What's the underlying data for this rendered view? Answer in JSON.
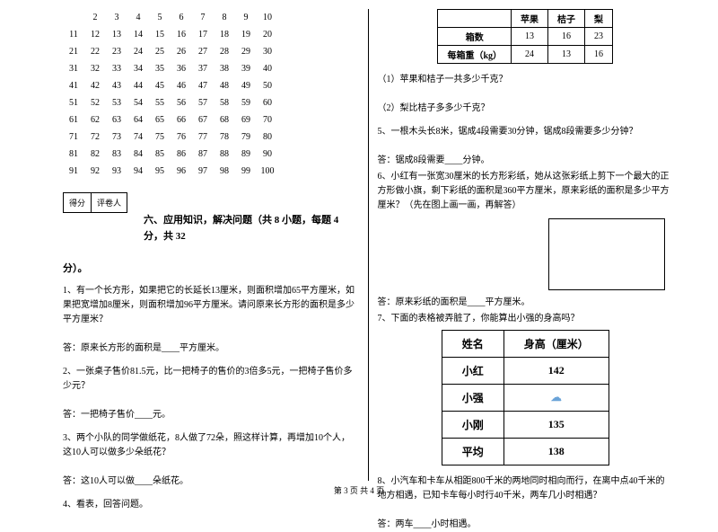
{
  "numbers": [
    [
      "",
      "2",
      "3",
      "4",
      "5",
      "6",
      "7",
      "8",
      "9",
      "10"
    ],
    [
      "11",
      "12",
      "13",
      "14",
      "15",
      "16",
      "17",
      "18",
      "19",
      "20"
    ],
    [
      "21",
      "22",
      "23",
      "24",
      "25",
      "26",
      "27",
      "28",
      "29",
      "30"
    ],
    [
      "31",
      "32",
      "33",
      "34",
      "35",
      "36",
      "37",
      "38",
      "39",
      "40"
    ],
    [
      "41",
      "42",
      "43",
      "44",
      "45",
      "46",
      "47",
      "48",
      "49",
      "50"
    ],
    [
      "51",
      "52",
      "53",
      "54",
      "55",
      "56",
      "57",
      "58",
      "59",
      "60"
    ],
    [
      "61",
      "62",
      "63",
      "64",
      "65",
      "66",
      "67",
      "68",
      "69",
      "70"
    ],
    [
      "71",
      "72",
      "73",
      "74",
      "75",
      "76",
      "77",
      "78",
      "79",
      "80"
    ],
    [
      "81",
      "82",
      "83",
      "84",
      "85",
      "86",
      "87",
      "88",
      "89",
      "90"
    ],
    [
      "91",
      "92",
      "93",
      "94",
      "95",
      "96",
      "97",
      "98",
      "99",
      "100"
    ]
  ],
  "scoreLabels": {
    "score": "得分",
    "grader": "评卷人"
  },
  "sectionSix": "六、应用知识，解决问题（共 8 小题，每题 4 分，共 32",
  "sectionSixCont": "分）。",
  "left": {
    "q1": "1、有一个长方形，如果把它的长延长13厘米，则面积增加65平方厘米，如果把宽增加8厘米，则面积增加96平方厘米。请问原来长方形的面积是多少平方厘米？",
    "a1": "答：原来长方形的面积是____平方厘米。",
    "q2": "2、一张桌子售价81.5元，比一把椅子的售价的3倍多5元，一把椅子售价多少元？",
    "a2": "答：一把椅子售价____元。",
    "q3": "3、两个小队的同学做纸花，8人做了72朵，照这样计算，再增加10个人，这10人可以做多少朵纸花？",
    "a3": "答：这10人可以做____朵纸花。",
    "q4": "4、看表，回答问题。"
  },
  "table1": {
    "headers": [
      "",
      "苹果",
      "桔子",
      "梨"
    ],
    "rows": [
      [
        "箱数",
        "13",
        "16",
        "23"
      ],
      [
        "每箱重（kg）",
        "24",
        "13",
        "16"
      ]
    ]
  },
  "right": {
    "q4a": "（1）苹果和桔子一共多少千克？",
    "q4b": "（2）梨比桔子多多少千克？",
    "q5": "5、一根木头长8米，锯成4段需要30分钟，锯成8段需要多少分钟？",
    "a5": "答：锯成8段需要____分钟。",
    "q6": "6、小红有一张宽30厘米的长方形彩纸，她从这张彩纸上剪下一个最大的正方形做小旗，剩下彩纸的面积是360平方厘米，原来彩纸的面积是多少平方厘米？（先在图上画一画，再解答）",
    "a6": "答：原来彩纸的面积是____平方厘米。",
    "q7": "7、下面的表格被弄脏了，你能算出小强的身高吗？",
    "q8": "8、小汽车和卡车从相距800千米的两地同时相向而行，在离中点40千米的地方相遇，已知卡车每小时行40千米，两车几小时相遇？",
    "a8": "答：两车____小时相遇。"
  },
  "table2": {
    "headers": [
      "姓名",
      "身高（厘米）"
    ],
    "rows": [
      [
        "小红",
        "142"
      ],
      [
        "小强",
        ""
      ],
      [
        "小刚",
        "135"
      ],
      [
        "平均",
        "138"
      ]
    ]
  },
  "footer": "第 3 页 共 4 页"
}
